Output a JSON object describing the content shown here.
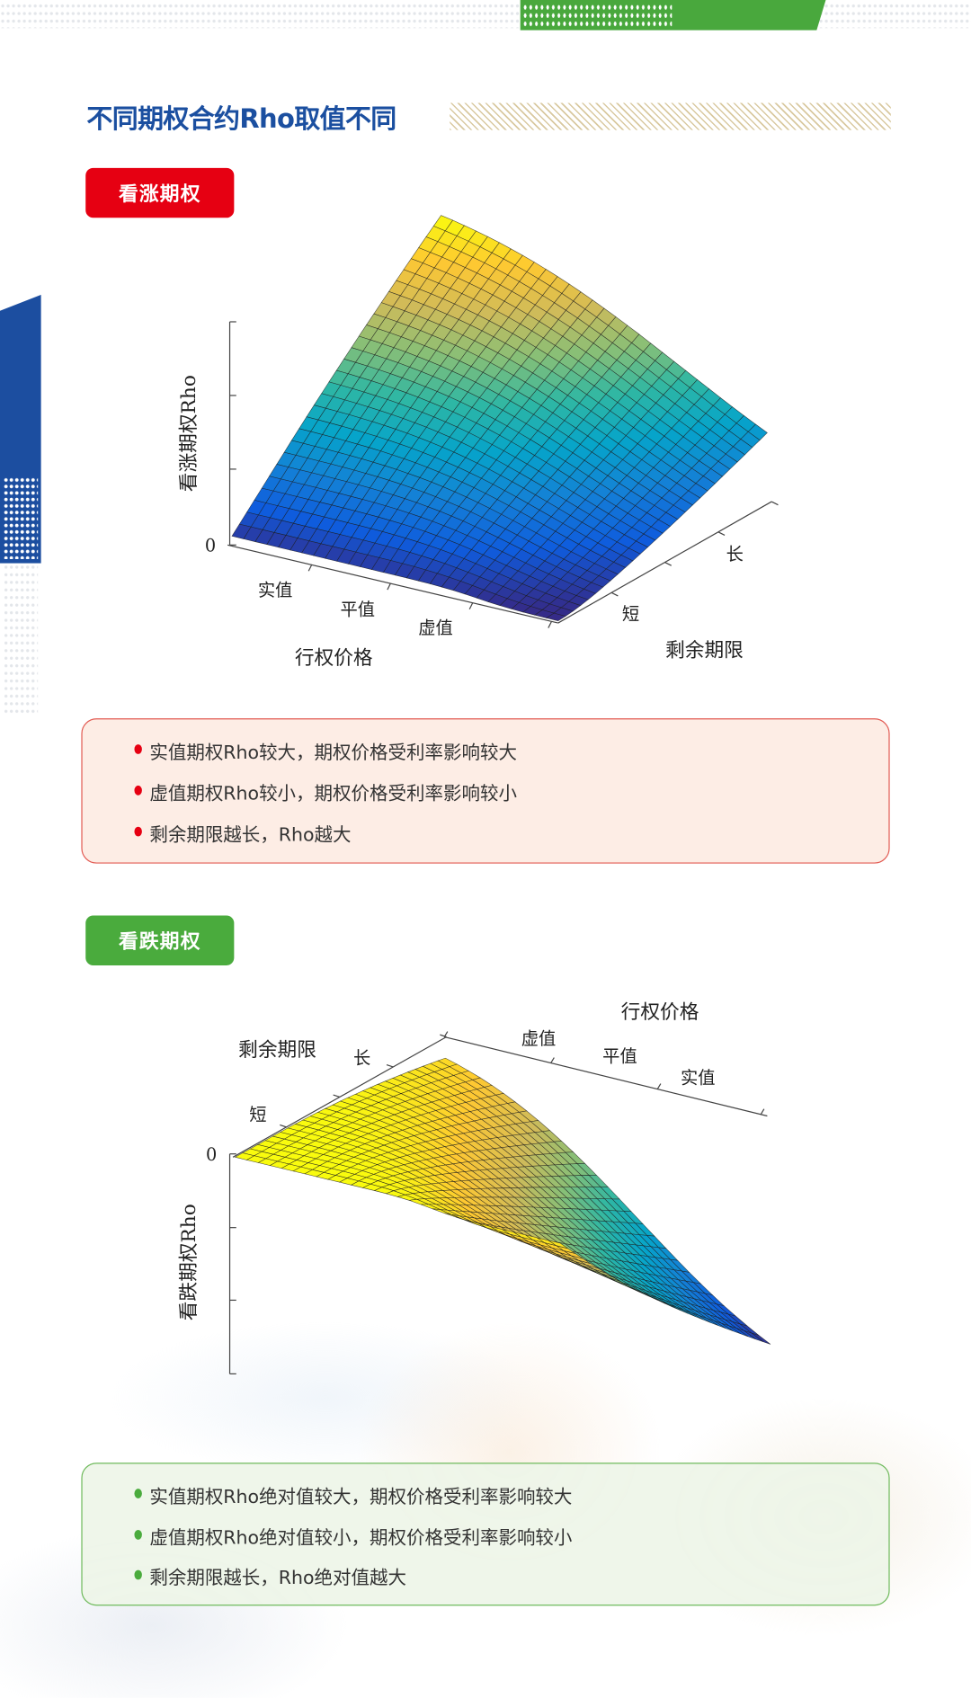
{
  "header": {
    "title": "不同期权合约Rho取值不同",
    "accent": "#1b4fa0"
  },
  "call": {
    "badge": "看涨期权",
    "badge_color": "#e60012",
    "points": [
      "实值期权Rho较大，期权价格受利率影响较大",
      "虚值期权Rho较小，期权价格受利率影响较小",
      "剩余期限越长，Rho越大"
    ],
    "box_bg": "#fdede5",
    "box_border": "#e25a52"
  },
  "put": {
    "badge": "看跌期权",
    "badge_color": "#4aab3d",
    "points": [
      "实值期权Rho绝对值较大，期权价格受利率影响较大",
      "虚值期权Rho绝对值较小，期权价格受利率影响较小",
      "剩余期限越长，Rho绝对值越大"
    ],
    "box_bg": "#eef5e9",
    "box_border": "#6fba5c"
  },
  "chart_data": [
    {
      "type": "surface",
      "title": "",
      "xlabel": "行权价格",
      "xticks": [
        "实值",
        "平值",
        "虚值"
      ],
      "ylabel": "剩余期限",
      "yticks": [
        "短",
        "长"
      ],
      "zlabel": "看涨期权Rho",
      "zticks": [
        "0"
      ],
      "colormap": "parula",
      "trend": "Rho ≥ 0, largest for in-the-money long-dated calls"
    },
    {
      "type": "surface",
      "title": "",
      "xlabel": "行权价格",
      "xticks": [
        "虚值",
        "平值",
        "实值"
      ],
      "ylabel": "剩余期限",
      "yticks": [
        "短",
        "长"
      ],
      "zlabel": "看跌期权Rho",
      "zticks": [
        "0"
      ],
      "colormap": "parula",
      "trend": "Rho ≤ 0, most negative for in-the-money long-dated puts"
    }
  ]
}
